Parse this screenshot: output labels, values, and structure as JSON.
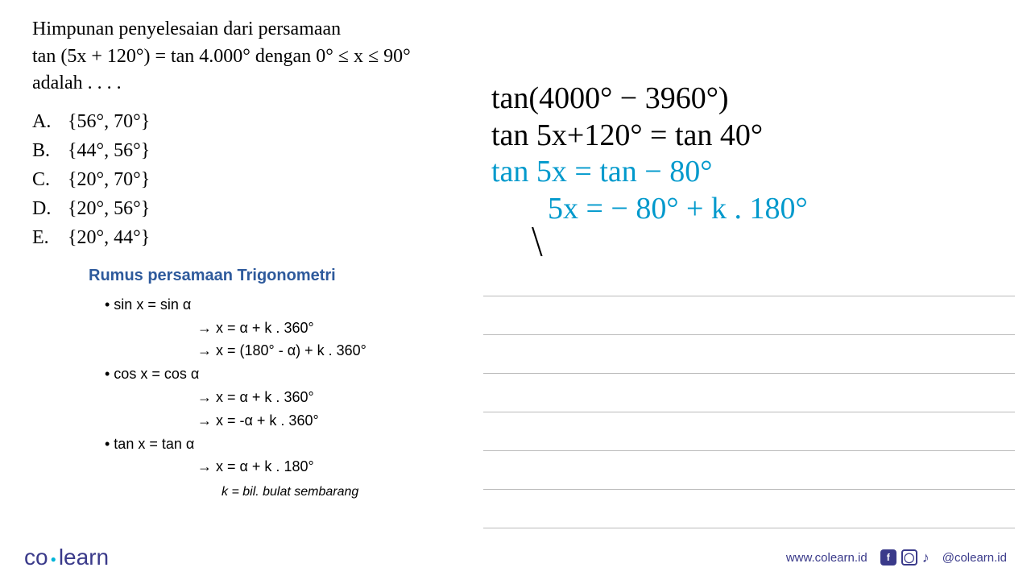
{
  "question": {
    "line1": "Himpunan penyelesaian dari persamaan",
    "line2": "tan (5x + 120°) = tan 4.000° dengan 0° ≤ x ≤ 90°",
    "line3": "adalah . . . ."
  },
  "options": {
    "A": "{56°, 70°}",
    "B": "{44°, 56°}",
    "C": "{20°, 70°}",
    "D": "{20°, 56°}",
    "E": "{20°, 44°}"
  },
  "formula": {
    "title": "Rumus persamaan Trigonometri",
    "sin_header": "• sin x  =  sin α",
    "sin_rule1": "→ x  =  α  +  k . 360°",
    "sin_rule2": "→ x  =  (180° - α)   +  k . 360°",
    "cos_header": "• cos x  =  cos α",
    "cos_rule1": "→ x  =  α  +  k . 360°",
    "cos_rule2": "→ x  =  -α  +  k . 360°",
    "tan_header": "• tan x  =  tan α",
    "tan_rule1": "→ x  =  α  +  k . 180°",
    "note": "k = bil. bulat sembarang"
  },
  "handwriting": {
    "line1": "tan(4000° − 3960°)",
    "line2": "tan 5x+120° = tan 40°",
    "line3": "tan 5x = tan − 80°",
    "line4": "5x = − 80° + k . 180°",
    "line5": "⧹"
  },
  "handwriting_colors": {
    "line1": "#000000",
    "line2": "#000000",
    "line3": "#0099cc",
    "line4": "#0099cc",
    "line5": "#000000"
  },
  "handwriting_fontsize": 38,
  "footer": {
    "logo_co": "co",
    "logo_learn": "learn",
    "url": "www.colearn.id",
    "handle": "@colearn.id"
  },
  "colors": {
    "formula_title": "#2e5a9c",
    "logo": "#3a3a8a",
    "logo_dot": "#00b4d8",
    "handwriting_blue": "#0099cc",
    "handwriting_black": "#000000",
    "ruled_line": "#bbbbbb",
    "background": "#ffffff"
  },
  "ruled_lines_count": 7
}
